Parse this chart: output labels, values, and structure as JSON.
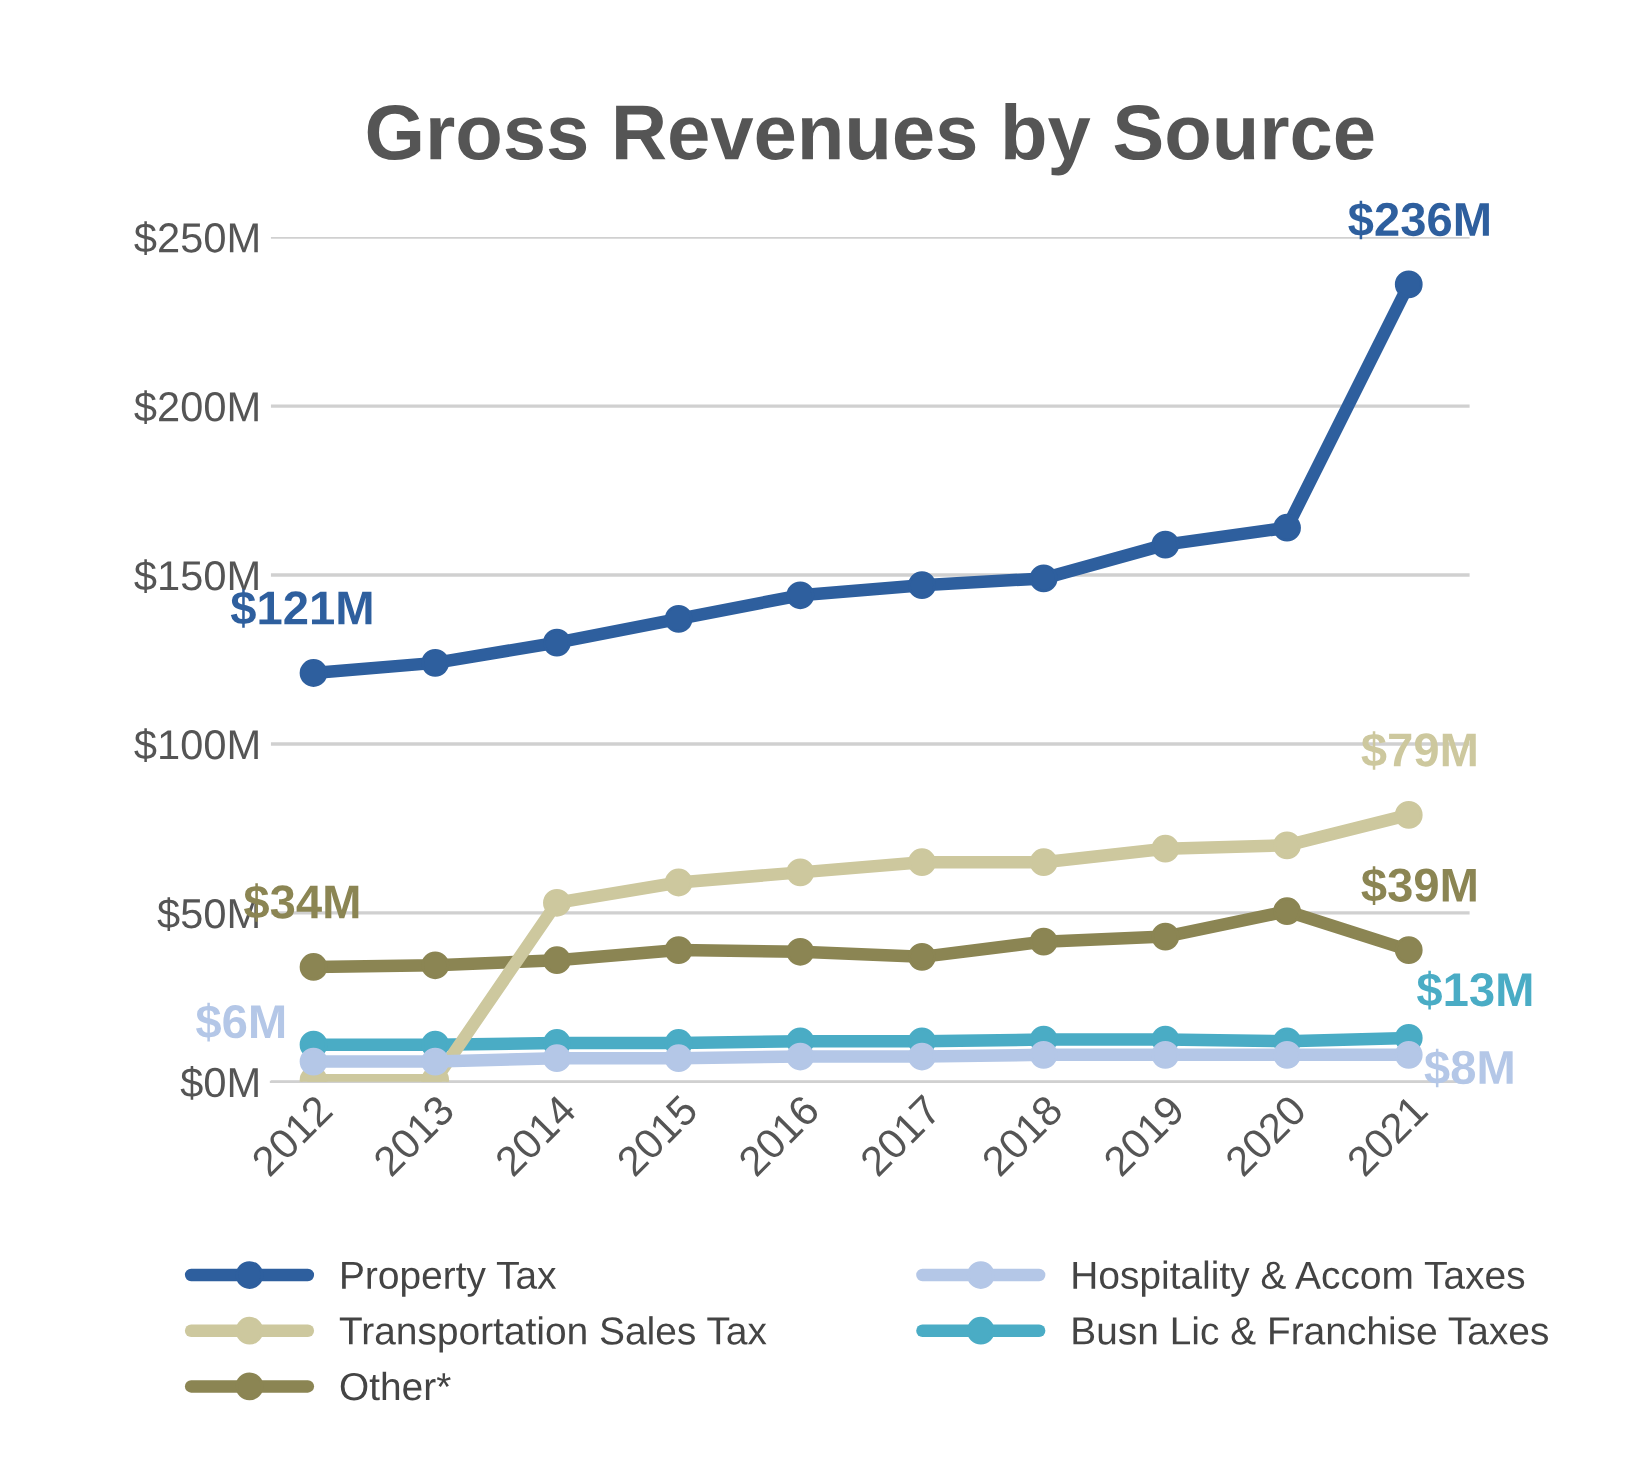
{
  "chart_data": {
    "type": "line",
    "title": "Gross Revenues by Source",
    "categories": [
      "2012",
      "2013",
      "2014",
      "2015",
      "2016",
      "2017",
      "2018",
      "2019",
      "2020",
      "2021"
    ],
    "series": [
      {
        "name": "Property Tax",
        "color": "#2e5f9e",
        "values": [
          121,
          124,
          130,
          137,
          144,
          147,
          149,
          159,
          164,
          236
        ],
        "value_labels": [
          "$121M",
          null,
          null,
          null,
          null,
          null,
          null,
          null,
          null,
          "$236M"
        ]
      },
      {
        "name": "Hospitality & Accom Taxes",
        "color": "#b4c7e7",
        "values": [
          6,
          6,
          7,
          7,
          7.5,
          7.5,
          8,
          8,
          8,
          8
        ],
        "value_labels": [
          "$6M",
          null,
          null,
          null,
          null,
          null,
          null,
          null,
          null,
          "$8M"
        ]
      },
      {
        "name": "Transportation Sales Tax",
        "color": "#cdc89e",
        "values": [
          0.5,
          0.5,
          53,
          59,
          62,
          65,
          65,
          69,
          70,
          79
        ],
        "value_labels": [
          null,
          null,
          null,
          null,
          null,
          null,
          null,
          null,
          null,
          "$79M"
        ]
      },
      {
        "name": "Busn Lic & Franchise Taxes",
        "color": "#4aacc5",
        "values": [
          11,
          11,
          11.5,
          11.5,
          12,
          12,
          12.5,
          12.5,
          12,
          13
        ],
        "value_labels": [
          null,
          null,
          null,
          null,
          null,
          null,
          null,
          null,
          null,
          "$13M"
        ]
      },
      {
        "name": "Other*",
        "color": "#8b8553",
        "values": [
          34,
          34.5,
          36,
          39,
          38.5,
          37,
          41.5,
          43,
          50.5,
          39
        ],
        "value_labels": [
          "$34M",
          null,
          null,
          null,
          null,
          null,
          null,
          null,
          null,
          "$39M"
        ]
      }
    ],
    "ylim": [
      0,
      250
    ],
    "yticks": [
      {
        "value": 0,
        "label": "$0M"
      },
      {
        "value": 50,
        "label": "$50M"
      },
      {
        "value": 100,
        "label": "$100M"
      },
      {
        "value": 150,
        "label": "$150M"
      },
      {
        "value": 200,
        "label": "$200M"
      },
      {
        "value": 250,
        "label": "$250M"
      }
    ],
    "grid": "y",
    "legend": "bottom",
    "marker": "circle",
    "line_style": "solid"
  }
}
